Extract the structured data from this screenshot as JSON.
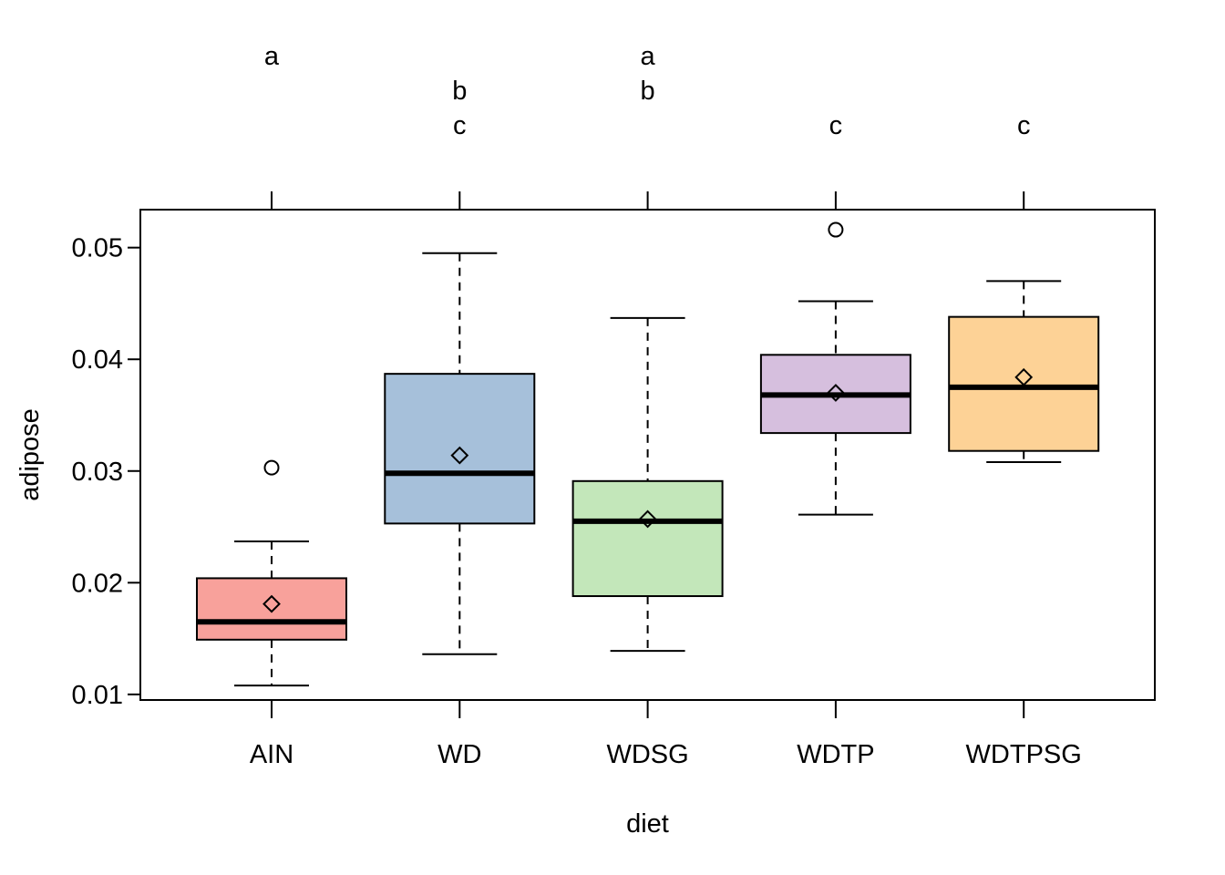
{
  "chart_data": {
    "type": "boxplot",
    "xlabel": "diet",
    "ylabel": "adipose",
    "categories": [
      "AIN",
      "WD",
      "WDSG",
      "WDTP",
      "WDTPSG"
    ],
    "ylim": [
      0.0095,
      0.0534
    ],
    "yticks": [
      0.01,
      0.02,
      0.03,
      0.04,
      0.05
    ],
    "ytick_labels": [
      "0.01",
      "0.02",
      "0.03",
      "0.04",
      "0.05"
    ],
    "grid": false,
    "boxes": [
      {
        "category": "AIN",
        "whisker_low": 0.0108,
        "q1": 0.0149,
        "median": 0.0165,
        "q3": 0.0204,
        "whisker_high": 0.0237,
        "mean": 0.0181,
        "outliers": [
          0.0303
        ],
        "letters": [
          "a"
        ],
        "color": "#F8A19B"
      },
      {
        "category": "WD",
        "whisker_low": 0.0136,
        "q1": 0.0253,
        "median": 0.0298,
        "q3": 0.0387,
        "whisker_high": 0.0495,
        "mean": 0.0314,
        "outliers": [],
        "letters": [
          "b",
          "c"
        ],
        "color": "#A6C0DA"
      },
      {
        "category": "WDSG",
        "whisker_low": 0.0139,
        "q1": 0.0188,
        "median": 0.0255,
        "q3": 0.0291,
        "whisker_high": 0.0437,
        "mean": 0.0257,
        "outliers": [],
        "letters": [
          "a",
          "b"
        ],
        "color": "#C3E7BA"
      },
      {
        "category": "WDTP",
        "whisker_low": 0.0261,
        "q1": 0.0334,
        "median": 0.0368,
        "q3": 0.0404,
        "whisker_high": 0.0452,
        "mean": 0.037,
        "outliers": [
          0.0516
        ],
        "letters": [
          "c"
        ],
        "color": "#D6BFDE"
      },
      {
        "category": "WDTPSG",
        "whisker_low": 0.0308,
        "q1": 0.0318,
        "median": 0.0375,
        "q3": 0.0438,
        "whisker_high": 0.047,
        "mean": 0.0384,
        "outliers": [],
        "letters": [
          "c"
        ],
        "color": "#FDD296"
      }
    ]
  }
}
